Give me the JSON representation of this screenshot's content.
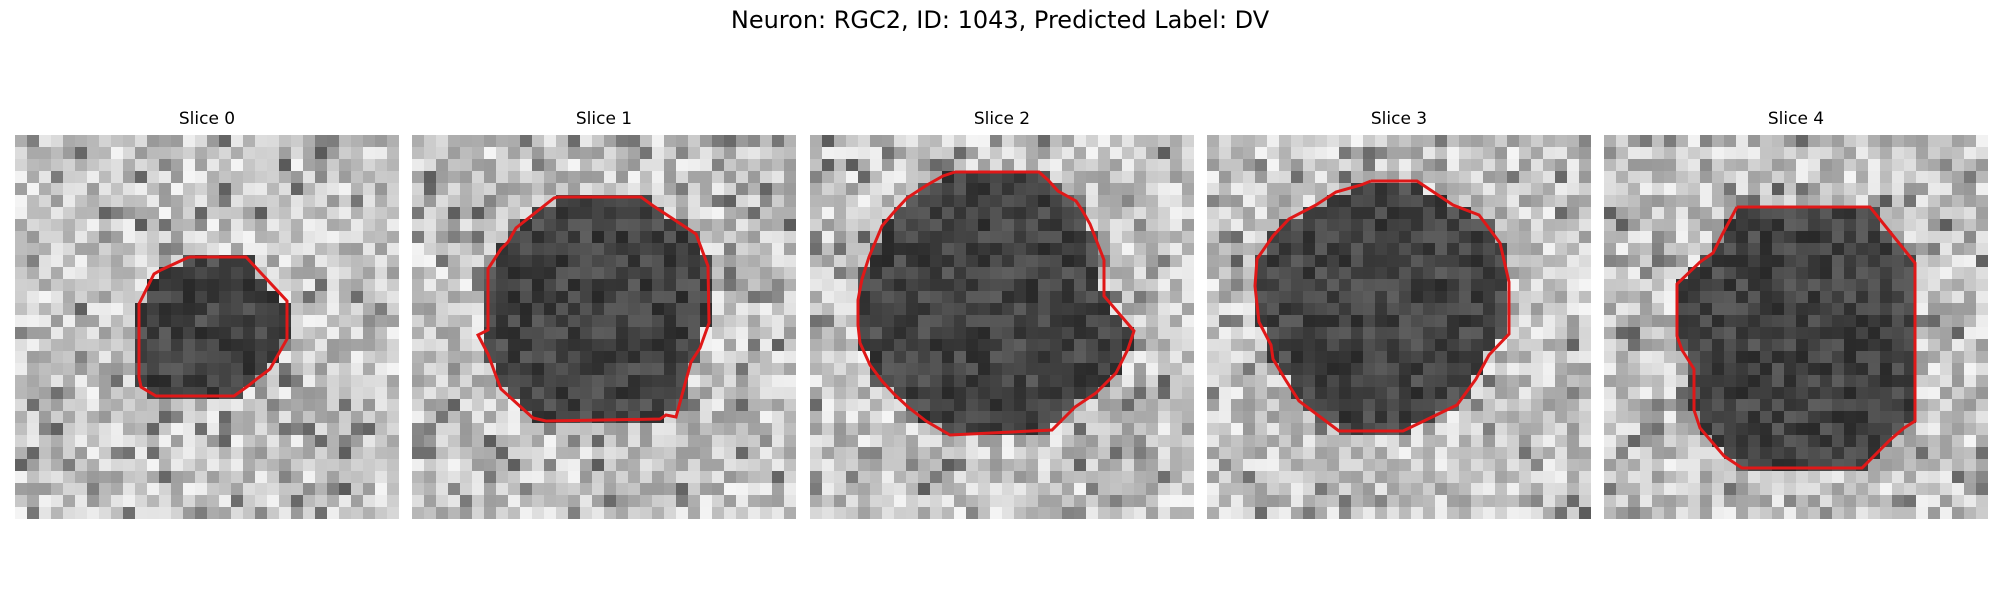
{
  "figure": {
    "title": "Neuron: RGC2, ID: 1043, Predicted Label: DV",
    "contour_color": "#e01818",
    "colormap": "grayscale"
  },
  "panels": [
    {
      "title": "Slice 0"
    },
    {
      "title": "Slice 1"
    },
    {
      "title": "Slice 2"
    },
    {
      "title": "Slice 3"
    },
    {
      "title": "Slice 4"
    }
  ]
}
